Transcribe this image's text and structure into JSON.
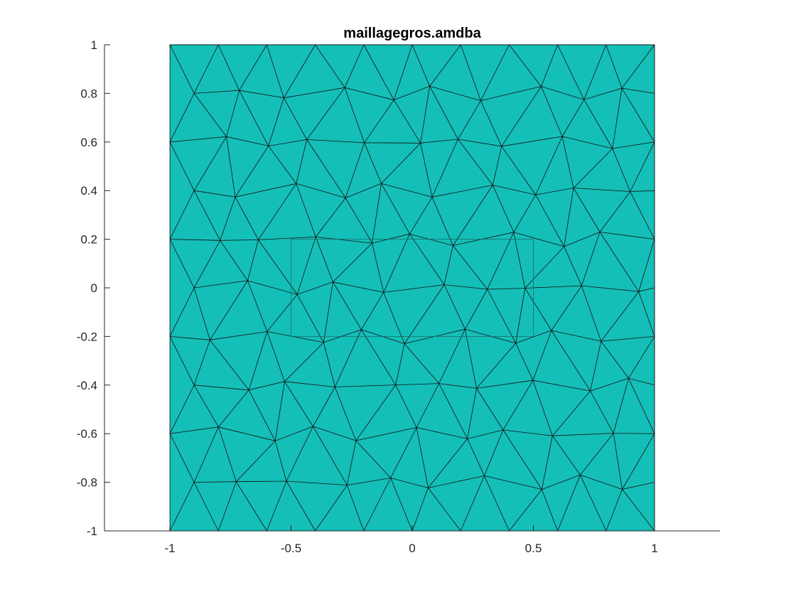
{
  "chart_data": {
    "type": "mesh",
    "title": "maillagegros.amdba",
    "xlabel": "",
    "ylabel": "",
    "xlim": [
      -1.27,
      1.27
    ],
    "ylim": [
      -1,
      1
    ],
    "xticks": [
      -1,
      -0.5,
      0,
      0.5,
      1
    ],
    "xtick_labels": [
      "-1",
      "-0.5",
      "0",
      "0.5",
      "1"
    ],
    "yticks": [
      -1,
      -0.8,
      -0.6,
      -0.4,
      -0.2,
      0,
      0.2,
      0.4,
      0.6,
      0.8,
      1
    ],
    "ytick_labels": [
      "-1",
      "-0.8",
      "-0.6",
      "-0.4",
      "-0.2",
      "0",
      "0.2",
      "0.4",
      "0.6",
      "0.8",
      "1"
    ],
    "domain": {
      "xmin": -1,
      "xmax": 1,
      "ymin": -1,
      "ymax": 1
    },
    "face_color": "#14bfb8",
    "edge_color": "#111111",
    "inner_rectangle": {
      "xmin": -0.5,
      "xmax": 0.5,
      "ymin": -0.2,
      "ymax": 0.2
    },
    "grid": false
  }
}
